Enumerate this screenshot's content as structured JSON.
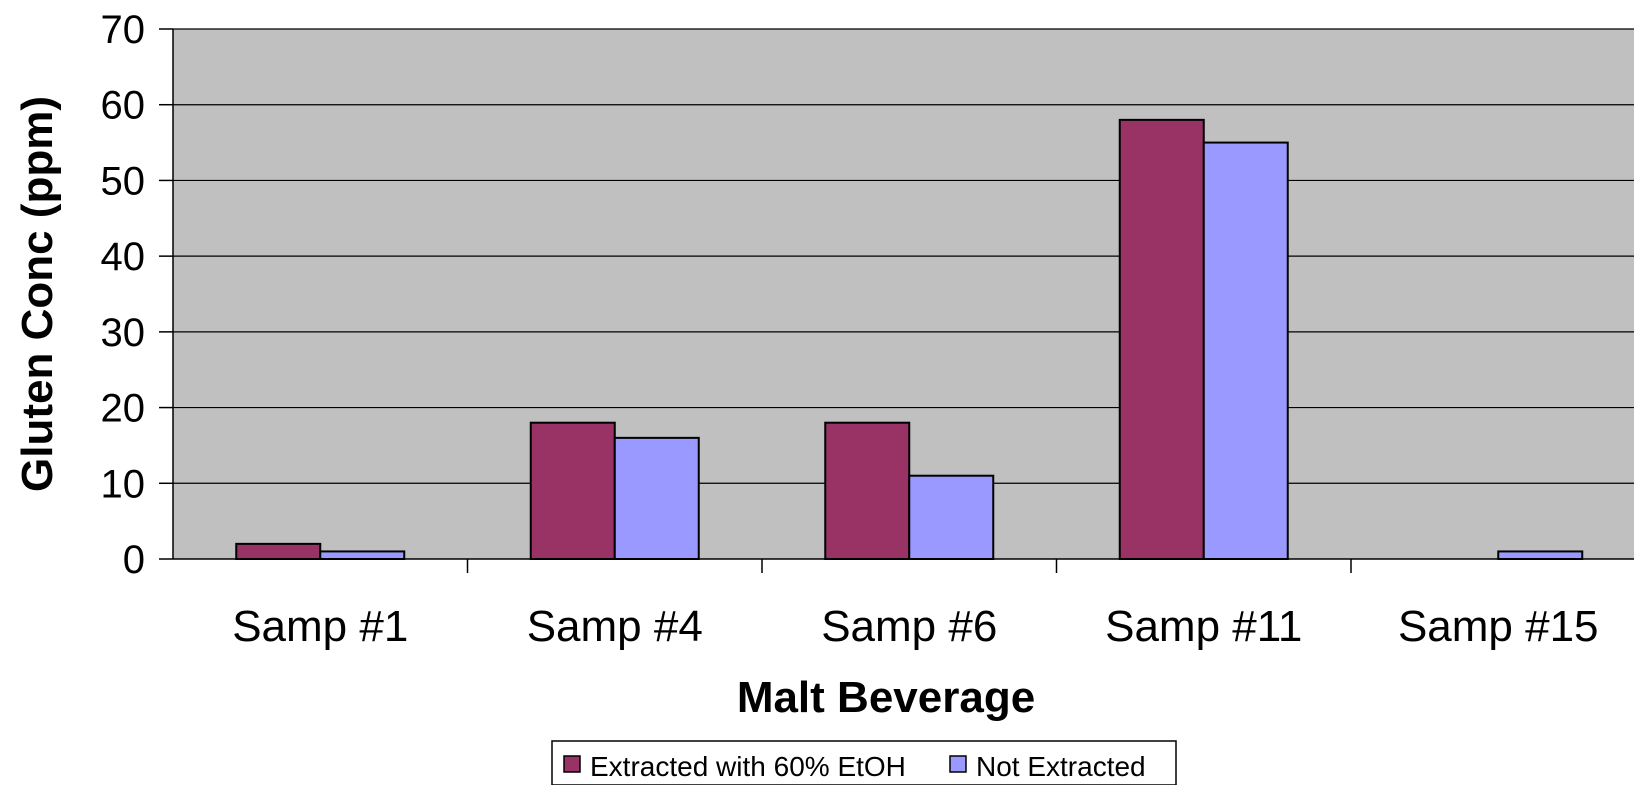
{
  "chart_data": {
    "type": "bar",
    "title": "",
    "xlabel": "Malt Beverage",
    "ylabel": "Gluten Conc (ppm)",
    "ylim": [
      0,
      70
    ],
    "yticks": [
      "0",
      "10",
      "20",
      "30",
      "40",
      "50",
      "60",
      "70"
    ],
    "categories": [
      "Samp #1",
      "Samp #4",
      "Samp #6",
      "Samp #11",
      "Samp #15"
    ],
    "series": [
      {
        "name": "Extracted with 60% EtOH",
        "color": "#993366",
        "values": [
          2,
          18,
          18,
          58,
          0
        ]
      },
      {
        "name": "Not Extracted",
        "color": "#9999FF",
        "values": [
          1,
          16,
          11,
          55,
          1
        ]
      }
    ],
    "grid": true,
    "plot_background": "#C0C0C0",
    "legend_position": "bottom-center"
  }
}
